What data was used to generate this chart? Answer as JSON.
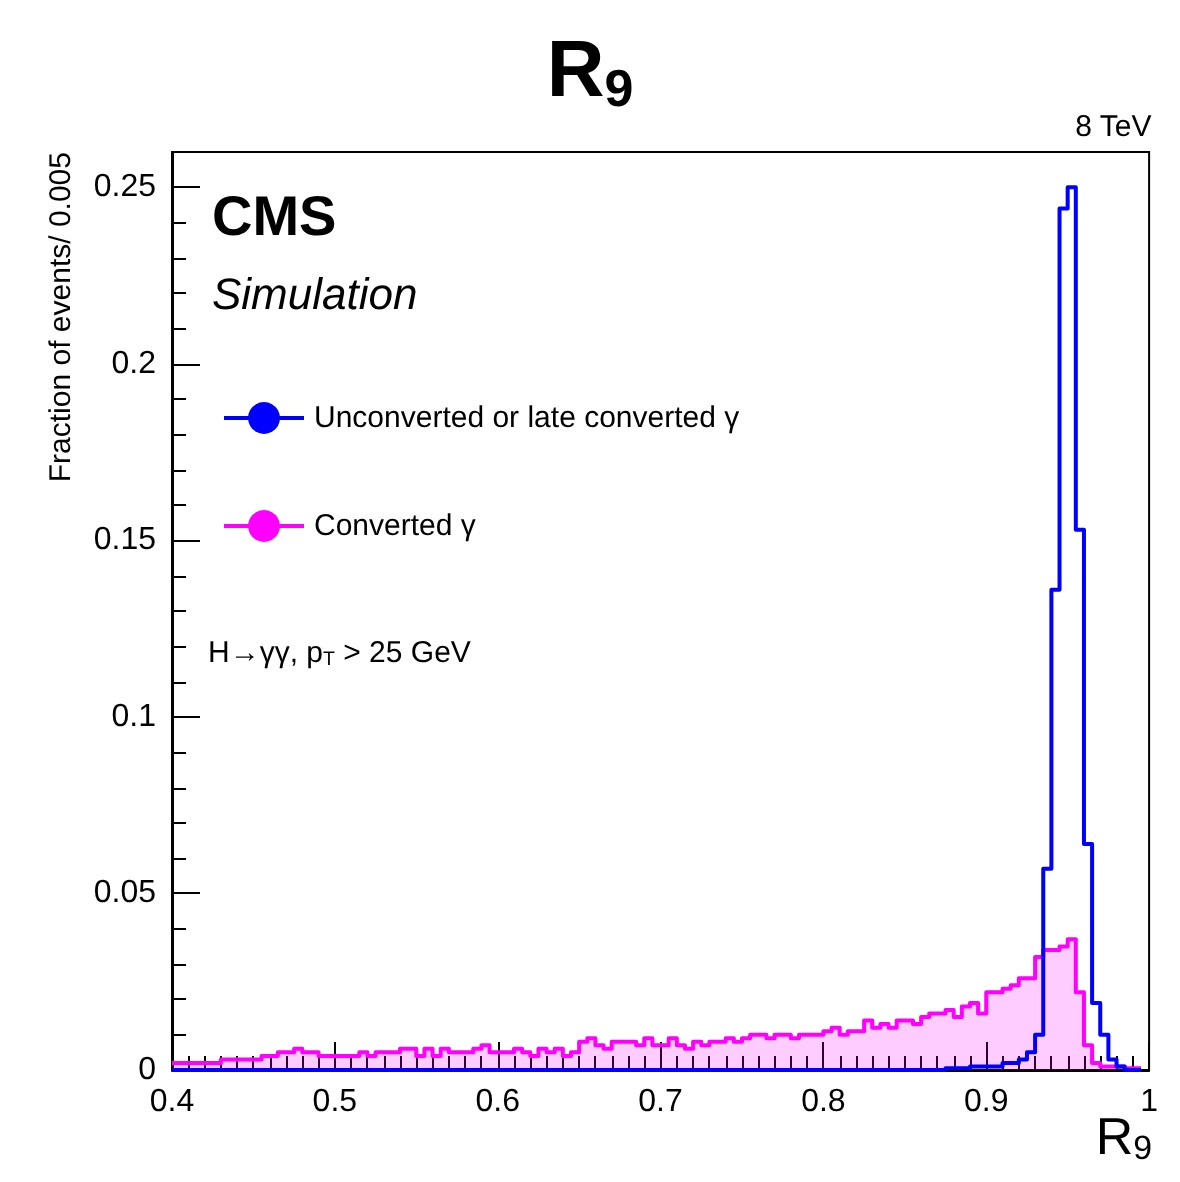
{
  "chart_data": {
    "type": "step",
    "title": "R$_{9}$",
    "xlabel": "R$_{9}$",
    "ylabel": "Fraction of events/ 0.005",
    "annotations": [
      "8 TeV",
      "CMS",
      "Simulation",
      "H→γγ, p$_{T}$ > 25 GeV"
    ],
    "x": [
      0.4,
      0.405,
      0.41,
      0.415,
      0.42,
      0.425,
      0.43,
      0.435,
      0.44,
      0.445,
      0.45,
      0.455,
      0.46,
      0.465,
      0.47,
      0.475,
      0.48,
      0.485,
      0.49,
      0.495,
      0.5,
      0.505,
      0.51,
      0.515,
      0.52,
      0.525,
      0.53,
      0.535,
      0.54,
      0.545,
      0.55,
      0.555,
      0.56,
      0.565,
      0.57,
      0.575,
      0.58,
      0.585,
      0.59,
      0.595,
      0.6,
      0.605,
      0.61,
      0.615,
      0.62,
      0.625,
      0.63,
      0.635,
      0.64,
      0.645,
      0.65,
      0.655,
      0.66,
      0.665,
      0.67,
      0.675,
      0.68,
      0.685,
      0.69,
      0.695,
      0.7,
      0.705,
      0.71,
      0.715,
      0.72,
      0.725,
      0.73,
      0.735,
      0.74,
      0.745,
      0.75,
      0.755,
      0.76,
      0.765,
      0.77,
      0.775,
      0.78,
      0.785,
      0.79,
      0.795,
      0.8,
      0.805,
      0.81,
      0.815,
      0.82,
      0.825,
      0.83,
      0.835,
      0.84,
      0.845,
      0.85,
      0.855,
      0.86,
      0.865,
      0.87,
      0.875,
      0.88,
      0.885,
      0.89,
      0.895,
      0.9,
      0.905,
      0.91,
      0.915,
      0.92,
      0.925,
      0.93,
      0.935,
      0.94,
      0.945,
      0.95,
      0.955,
      0.96,
      0.965,
      0.97,
      0.975,
      0.98,
      0.985,
      0.99,
      0.995
    ],
    "series": [
      {
        "name": "Unconverted or late converted γ",
        "color": "#0000ff",
        "values": [
          0,
          0,
          0,
          0,
          0,
          0,
          0,
          0,
          0,
          0,
          0,
          0,
          0,
          0,
          0,
          0,
          0,
          0,
          0,
          0,
          0,
          0,
          0,
          0,
          0,
          0,
          0,
          0,
          0,
          0,
          0,
          0,
          0,
          0,
          0,
          0,
          0,
          0,
          0,
          0,
          0,
          0,
          0,
          0,
          0,
          0,
          0,
          0,
          0,
          0,
          0,
          0,
          0,
          0,
          0,
          0,
          0,
          0,
          0,
          0,
          0,
          0,
          0,
          0,
          0,
          0,
          0,
          0,
          0,
          0,
          0,
          0,
          0,
          0,
          0,
          0,
          0,
          0,
          0,
          0,
          0,
          0,
          0,
          0,
          0,
          0,
          0,
          0,
          0,
          0,
          0,
          0,
          0,
          0,
          0,
          0.0005,
          0.0005,
          0.0005,
          0.001,
          0.001,
          0.001,
          0.001,
          0.002,
          0.002,
          0.003,
          0.005,
          0.01,
          0.057,
          0.136,
          0.244,
          0.25,
          0.153,
          0.064,
          0.019,
          0.01,
          0.003,
          0.001,
          0,
          0,
          0
        ]
      },
      {
        "name": "Converted γ",
        "type": "area",
        "color": "#ff00ff",
        "values": [
          0.002,
          0.002,
          0.002,
          0.002,
          0.002,
          0.002,
          0.003,
          0.003,
          0.003,
          0.003,
          0.003,
          0.004,
          0.004,
          0.005,
          0.005,
          0.006,
          0.005,
          0.005,
          0.004,
          0.004,
          0.004,
          0.004,
          0.004,
          0.005,
          0.004,
          0.005,
          0.005,
          0.005,
          0.006,
          0.006,
          0.004,
          0.006,
          0.004,
          0.006,
          0.005,
          0.005,
          0.005,
          0.006,
          0.007,
          0.005,
          0.005,
          0.005,
          0.006,
          0.005,
          0.004,
          0.006,
          0.005,
          0.006,
          0.004,
          0.005,
          0.008,
          0.009,
          0.007,
          0.006,
          0.008,
          0.008,
          0.008,
          0.007,
          0.009,
          0.007,
          0.007,
          0.009,
          0.007,
          0.006,
          0.008,
          0.007,
          0.008,
          0.008,
          0.009,
          0.008,
          0.009,
          0.01,
          0.01,
          0.009,
          0.01,
          0.01,
          0.009,
          0.01,
          0.01,
          0.01,
          0.011,
          0.012,
          0.01,
          0.011,
          0.011,
          0.014,
          0.012,
          0.013,
          0.012,
          0.014,
          0.014,
          0.013,
          0.015,
          0.016,
          0.016,
          0.017,
          0.015,
          0.018,
          0.019,
          0.016,
          0.022,
          0.022,
          0.023,
          0.024,
          0.026,
          0.026,
          0.032,
          0.034,
          0.034,
          0.035,
          0.037,
          0.022,
          0.007,
          0.002,
          0.001,
          0.001,
          0.001,
          0.0005,
          0.0005,
          0.0005
        ]
      }
    ],
    "xlim": [
      0.4,
      1.0
    ],
    "xticks": [
      0.4,
      0.5,
      0.6,
      0.7,
      0.8,
      0.9,
      {
        "value": 1.0,
        "label": "1"
      }
    ],
    "ylim": [
      0,
      0.26
    ],
    "yticks": [
      0,
      0.05,
      0.1,
      0.15,
      0.2,
      0.25
    ],
    "legend": "top left"
  }
}
